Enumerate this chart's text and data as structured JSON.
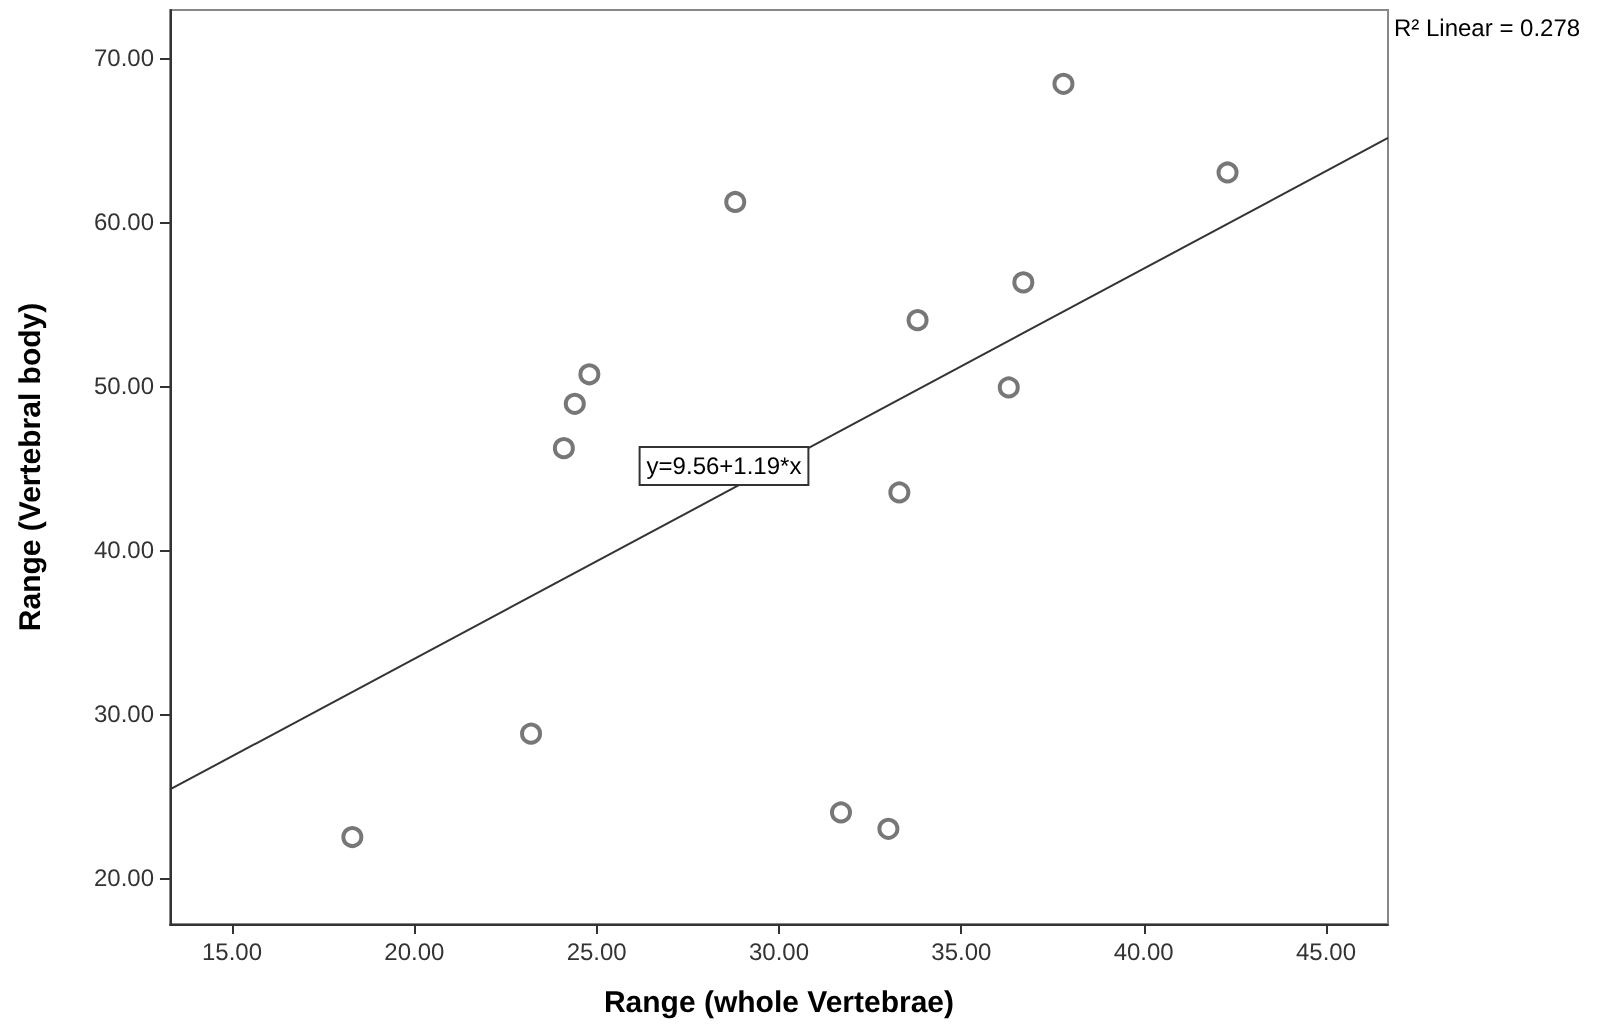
{
  "chart_data": {
    "type": "scatter",
    "xlabel": "Range (whole Vertebrae)",
    "ylabel": "Range (Vertebral body)",
    "xlim": [
      13.3,
      46.7
    ],
    "ylim": [
      17.2,
      72.9
    ],
    "xticks": [
      {
        "value": 15,
        "label": "15.00"
      },
      {
        "value": 20,
        "label": "20.00"
      },
      {
        "value": 25,
        "label": "25.00"
      },
      {
        "value": 30,
        "label": "30.00"
      },
      {
        "value": 35,
        "label": "35.00"
      },
      {
        "value": 40,
        "label": "40.00"
      },
      {
        "value": 45,
        "label": "45.00"
      }
    ],
    "yticks": [
      {
        "value": 20,
        "label": "20.00"
      },
      {
        "value": 30,
        "label": "30.00"
      },
      {
        "value": 40,
        "label": "40.00"
      },
      {
        "value": 50,
        "label": "50.00"
      },
      {
        "value": 60,
        "label": "60.00"
      },
      {
        "value": 70,
        "label": "70.00"
      }
    ],
    "series": [
      {
        "type": "scatter",
        "marker": "circle",
        "color": "#555555",
        "x": [
          28.8,
          24.8,
          24.4,
          24.1,
          37.8,
          42.3,
          36.7,
          33.8,
          36.3,
          33.3,
          23.2,
          18.3,
          31.7,
          33.0
        ],
        "values": [
          61.2,
          50.7,
          48.9,
          46.2,
          68.4,
          63.0,
          56.3,
          54.0,
          49.9,
          43.5,
          28.8,
          22.5,
          24.0,
          23.0
        ]
      },
      {
        "type": "line",
        "marker": "none",
        "color": "#333333",
        "x": [
          13.3,
          46.7
        ],
        "values": [
          25.4,
          65.1
        ]
      }
    ],
    "annotations": [
      "R² Linear = 0.278",
      "y=9.56+1.19*x"
    ]
  }
}
